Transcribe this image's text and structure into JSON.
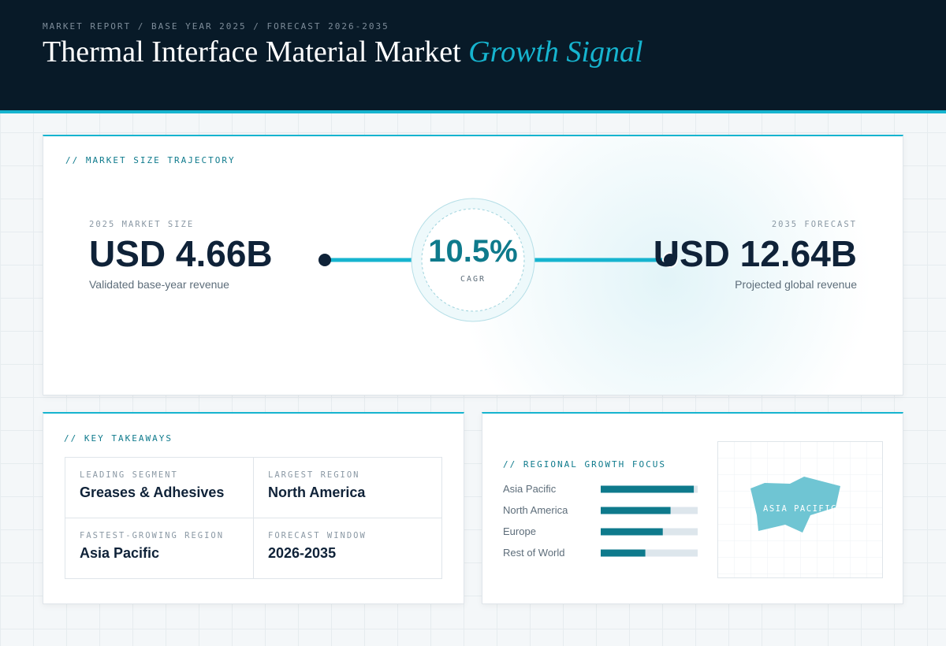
{
  "header": {
    "eyebrow": "MARKET REPORT / BASE YEAR 2025 / FORECAST 2026-2035",
    "title": "Thermal Interface Material Market",
    "title_accent": "Growth Signal"
  },
  "trajectory": {
    "label": "// MARKET SIZE TRAJECTORY",
    "start": {
      "label": "2025 MARKET SIZE",
      "value": "USD 4.66B",
      "caption": "Validated base-year revenue"
    },
    "cagr": {
      "value": "10.5%",
      "label": "CAGR"
    },
    "end": {
      "label": "2035 FORECAST",
      "value": "USD 12.64B",
      "caption": "Projected global revenue"
    }
  },
  "takeaways": {
    "label": "// KEY TAKEAWAYS",
    "cells": [
      {
        "label": "LEADING SEGMENT",
        "value": "Greases & Adhesives"
      },
      {
        "label": "LARGEST REGION",
        "value": "North America"
      },
      {
        "label": "FASTEST-GROWING REGION",
        "value": "Asia Pacific"
      },
      {
        "label": "FORECAST WINDOW",
        "value": "2026-2035"
      }
    ]
  },
  "regional": {
    "label": "// REGIONAL GROWTH FOCUS",
    "xlim": [
      0,
      100
    ],
    "bar_color": "#0e7a8c",
    "track_color": "#dde6ec",
    "categories": [
      "Asia Pacific",
      "North America",
      "Europe",
      "Rest of World"
    ],
    "values": [
      96,
      72,
      64,
      46
    ],
    "map_label": "ASIA PACIFIC"
  }
}
